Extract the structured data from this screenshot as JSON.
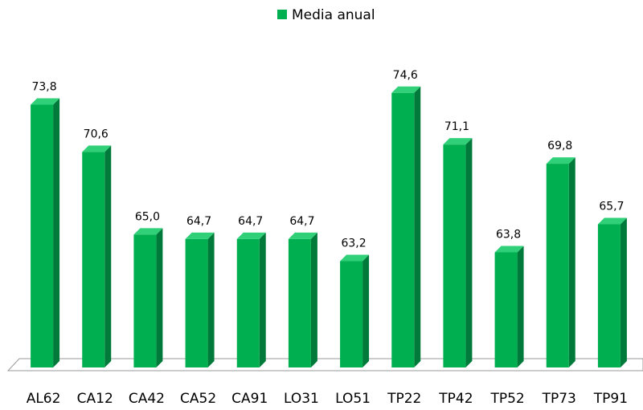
{
  "chart_data": {
    "type": "bar",
    "categories": [
      "AL62",
      "CA12",
      "CA42",
      "CA52",
      "CA91",
      "LO31",
      "LO51",
      "TP22",
      "TP42",
      "TP52",
      "TP73",
      "TP91"
    ],
    "series": [
      {
        "name": "Media anual",
        "color": "#00b050",
        "values": [
          73.8,
          70.6,
          65.0,
          64.7,
          64.7,
          64.7,
          63.2,
          74.6,
          71.1,
          63.8,
          69.8,
          65.7
        ],
        "value_labels": [
          "73,8",
          "70,6",
          "65,0",
          "64,7",
          "64,7",
          "64,7",
          "63,2",
          "74,6",
          "71,1",
          "63,8",
          "69,8",
          "65,7"
        ]
      }
    ],
    "ylim": [
      56,
      76
    ],
    "legend": "top"
  }
}
